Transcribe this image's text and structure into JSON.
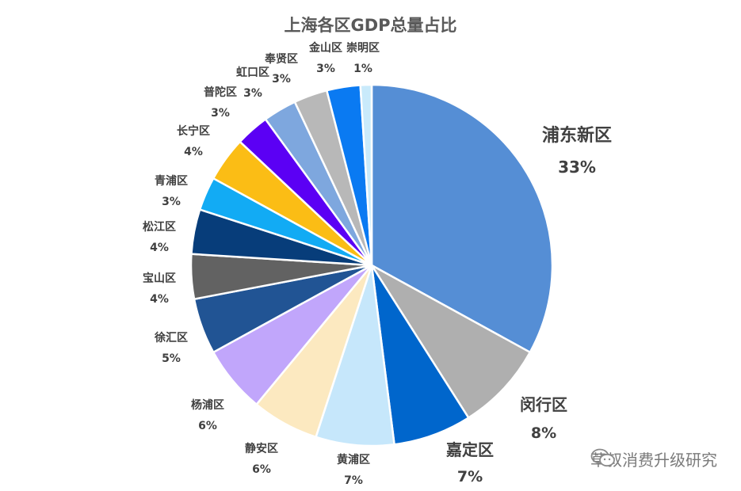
{
  "chart_data": {
    "type": "pie",
    "title": "上海各区GDP总量占比",
    "slices": [
      {
        "label": "浦东新区",
        "value": 33,
        "value_label": "33%",
        "color": "#558ED5"
      },
      {
        "label": "闵行区",
        "value": 8,
        "value_label": "8%",
        "color": "#AFAFAF"
      },
      {
        "label": "嘉定区",
        "value": 7,
        "value_label": "7%",
        "color": "#0066CC"
      },
      {
        "label": "黄浦区",
        "value": 7,
        "value_label": "7%",
        "color": "#C6E7FB"
      },
      {
        "label": "静安区",
        "value": 6,
        "value_label": "6%",
        "color": "#FCE9C0"
      },
      {
        "label": "杨浦区",
        "value": 6,
        "value_label": "6%",
        "color": "#C1A6FB"
      },
      {
        "label": "徐汇区",
        "value": 5,
        "value_label": "5%",
        "color": "#215494"
      },
      {
        "label": "宝山区",
        "value": 4,
        "value_label": "4%",
        "color": "#626262"
      },
      {
        "label": "松江区",
        "value": 4,
        "value_label": "4%",
        "color": "#073D7A"
      },
      {
        "label": "青浦区",
        "value": 3,
        "value_label": "3%",
        "color": "#12ABF4"
      },
      {
        "label": "长宁区",
        "value": 4,
        "value_label": "4%",
        "color": "#FBBD15"
      },
      {
        "label": "普陀区",
        "value": 3,
        "value_label": "3%",
        "color": "#5B00F4"
      },
      {
        "label": "虹口区",
        "value": 3,
        "value_label": "3%",
        "color": "#7EA7DE"
      },
      {
        "label": "奉贤区",
        "value": 3,
        "value_label": "3%",
        "color": "#B8B8B8"
      },
      {
        "label": "金山区",
        "value": 3,
        "value_label": "3%",
        "color": "#0A7AF2"
      },
      {
        "label": "崇明区",
        "value": 1,
        "value_label": "1%",
        "color": "#C9EAFB"
      }
    ]
  },
  "watermark": {
    "text": "草叔消费升级研究",
    "icon": "wechat-icon"
  }
}
